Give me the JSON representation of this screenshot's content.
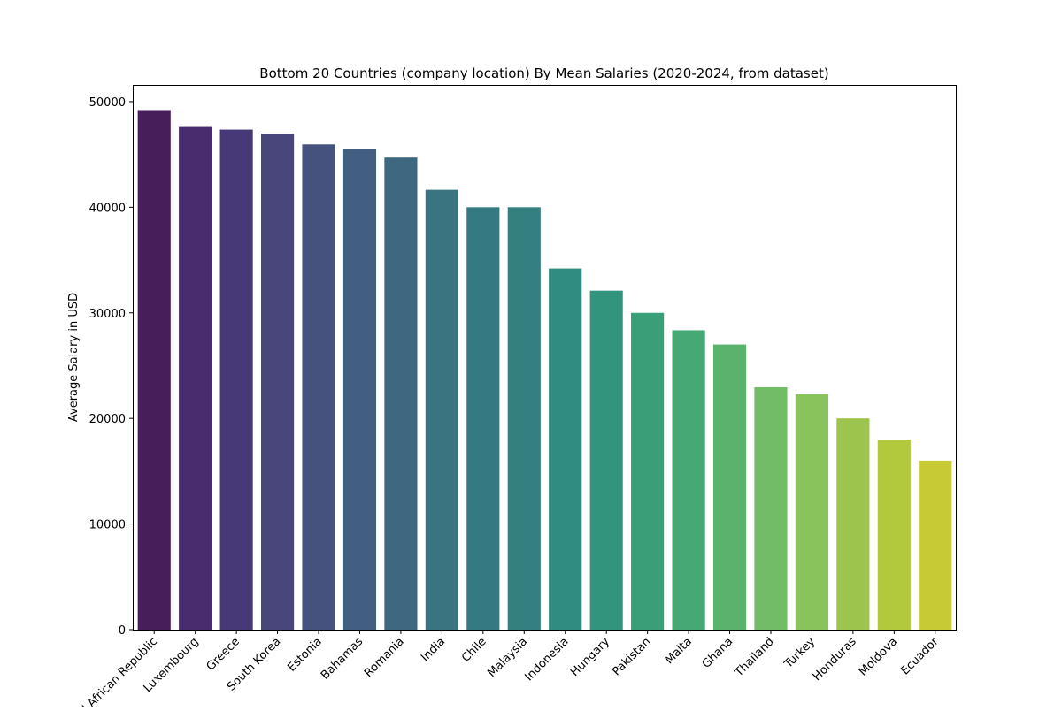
{
  "chart_data": {
    "type": "bar",
    "title": "Bottom 20 Countries (company location) By Mean Salaries (2020-2024, from dataset)",
    "xlabel": "",
    "ylabel": "Average Salary in USD",
    "ylim": [
      0,
      51500
    ],
    "yticks": [
      0,
      10000,
      20000,
      30000,
      40000,
      50000
    ],
    "ytick_labels": [
      "0",
      "10000",
      "20000",
      "30000",
      "40000",
      "50000"
    ],
    "grid": false,
    "legend": "none",
    "palette": "viridis",
    "categories": [
      "Central African Republic",
      "Luxembourg",
      "Greece",
      "South Korea",
      "Estonia",
      "Bahamas",
      "Romania",
      "India",
      "Chile",
      "Malaysia",
      "Indonesia",
      "Hungary",
      "Pakistan",
      "Malta",
      "Ghana",
      "Thailand",
      "Turkey",
      "Honduras",
      "Moldova",
      "Ecuador"
    ],
    "values": [
      49200,
      47600,
      47350,
      46950,
      45950,
      45550,
      44700,
      41650,
      40000,
      40000,
      34200,
      32100,
      30000,
      28350,
      27000,
      22950,
      22300,
      20000,
      18000,
      16000
    ],
    "colors": [
      "#471d5a",
      "#482c6e",
      "#473877",
      "#48467b",
      "#46527e",
      "#425e81",
      "#3e6780",
      "#3a7481",
      "#357a82",
      "#348081",
      "#308c80",
      "#32947b",
      "#3a9e79",
      "#46a875",
      "#5ab26c",
      "#72bc67",
      "#88c35c",
      "#9dc54d",
      "#b2c93d",
      "#c7ca34"
    ]
  }
}
